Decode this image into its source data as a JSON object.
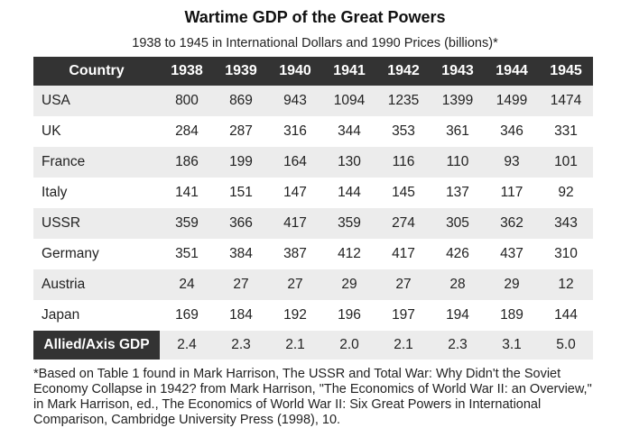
{
  "title": "Wartime GDP of the Great Powers",
  "subtitle": "1938 to 1945 in International Dollars and 1990 Prices (billions)*",
  "table": {
    "header": [
      "Country",
      "1938",
      "1939",
      "1940",
      "1941",
      "1942",
      "1943",
      "1944",
      "1945"
    ],
    "rows": [
      [
        "USA",
        "800",
        "869",
        "943",
        "1094",
        "1235",
        "1399",
        "1499",
        "1474"
      ],
      [
        "UK",
        "284",
        "287",
        "316",
        "344",
        "353",
        "361",
        "346",
        "331"
      ],
      [
        "France",
        "186",
        "199",
        "164",
        "130",
        "116",
        "110",
        "93",
        "101"
      ],
      [
        "Italy",
        "141",
        "151",
        "147",
        "144",
        "145",
        "137",
        "117",
        "92"
      ],
      [
        "USSR",
        "359",
        "366",
        "417",
        "359",
        "274",
        "305",
        "362",
        "343"
      ],
      [
        "Germany",
        "351",
        "384",
        "387",
        "412",
        "417",
        "426",
        "437",
        "310"
      ],
      [
        "Austria",
        "24",
        "27",
        "27",
        "29",
        "27",
        "28",
        "29",
        "12"
      ],
      [
        "Japan",
        "169",
        "184",
        "192",
        "196",
        "197",
        "194",
        "189",
        "144"
      ]
    ],
    "ratio_row": [
      "Allied/Axis GDP",
      "2.4",
      "2.3",
      "2.1",
      "2.0",
      "2.1",
      "2.3",
      "3.1",
      "5.0"
    ]
  },
  "footnote": "*Based on Table 1 found in Mark Harrison, The USSR and Total War: Why Didn't the Soviet Economy Collapse in 1942? from Mark Harrison, \"The Economics of World War II: an Overview,\" in Mark Harrison, ed., The Economics of World War II: Six Great Powers in International Comparison, Cambridge University Press (1998), 10."
}
